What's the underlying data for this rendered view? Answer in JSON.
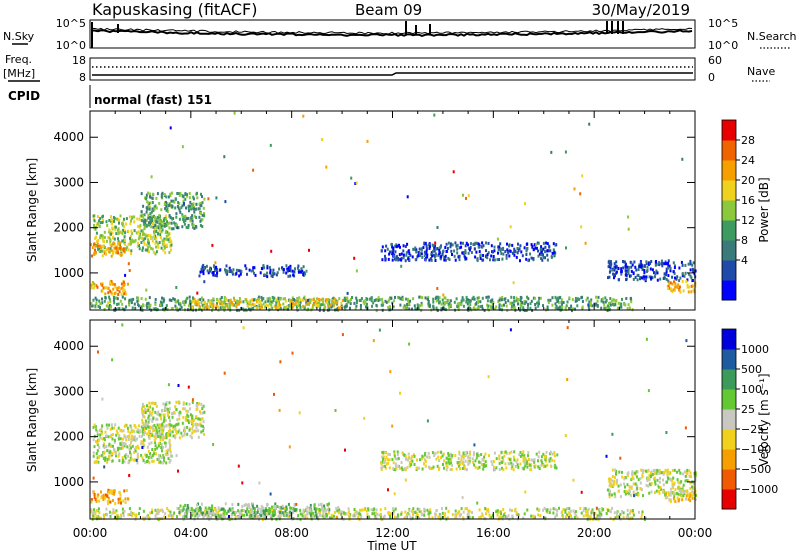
{
  "header": {
    "station": "Kapuskasing (fitACF)",
    "beam": "Beam 09",
    "date": "30/May/2019"
  },
  "noise_panel": {
    "left_label": "N.Sky",
    "right_label": "N.Search",
    "left_ticks": [
      "10^5",
      "10^0"
    ],
    "right_ticks": [
      "10^5",
      "10^0"
    ]
  },
  "freq_panel": {
    "label_top": "Freq.",
    "label_unit": "[MHz]",
    "left_ticks": [
      "18",
      "8"
    ],
    "right_label": "Nave",
    "right_ticks": [
      "60",
      "0"
    ]
  },
  "cpid": {
    "label": "CPID",
    "value": "normal (fast) 151"
  },
  "chart_data": [
    {
      "type": "heatmap",
      "panel": "power",
      "ylabel": "Slant Range [km]",
      "yticks": [
        "4000",
        "3000",
        "2000",
        "1000"
      ],
      "ylim": [
        180,
        4580
      ],
      "xlim": [
        0,
        24
      ],
      "colorbar_label": "Power [dB]",
      "colorbar_ticks": [
        "28",
        "24",
        "20",
        "16",
        "12",
        "8",
        "4"
      ],
      "colors": [
        "#0000ff",
        "#1f4aa8",
        "#3a7a7a",
        "#3d9b5f",
        "#8cc83c",
        "#f0d21e",
        "#f5a000",
        "#f06400",
        "#e60000"
      ],
      "regions": [
        {
          "t0": 0.1,
          "t1": 3.2,
          "r0": 1450,
          "r1": 2300,
          "lvl": 4
        },
        {
          "t0": 2.0,
          "t1": 4.5,
          "r0": 2000,
          "r1": 2800,
          "lvl": 3
        },
        {
          "t0": 0.0,
          "t1": 1.5,
          "r0": 550,
          "r1": 850,
          "lvl": 6
        },
        {
          "t0": 0.0,
          "t1": 1.5,
          "r0": 1400,
          "r1": 1700,
          "lvl": 6
        },
        {
          "t0": 0.0,
          "t1": 21.5,
          "r0": 200,
          "r1": 500,
          "lvl": 3
        },
        {
          "t0": 4.0,
          "t1": 10.0,
          "r0": 250,
          "r1": 450,
          "lvl": 5
        },
        {
          "t0": 4.3,
          "t1": 8.5,
          "r0": 950,
          "r1": 1200,
          "lvl": 1
        },
        {
          "t0": 11.5,
          "t1": 18.5,
          "r0": 1300,
          "r1": 1700,
          "lvl": 1
        },
        {
          "t0": 20.5,
          "t1": 24.0,
          "r0": 850,
          "r1": 1300,
          "lvl": 1
        },
        {
          "t0": 22.8,
          "t1": 24.0,
          "r0": 600,
          "r1": 850,
          "lvl": 6
        }
      ]
    },
    {
      "type": "heatmap",
      "panel": "velocity",
      "ylabel": "Slant Range [km]",
      "yticks": [
        "4000",
        "3000",
        "2000",
        "1000"
      ],
      "ylim": [
        180,
        4580
      ],
      "xlim": [
        0,
        24
      ],
      "xticks": [
        "00:00",
        "04:00",
        "08:00",
        "12:00",
        "16:00",
        "20:00",
        "00:00"
      ],
      "xlabel": "Time UT",
      "colorbar_label": "Velocity [m s⁻¹]",
      "colorbar_ticks": [
        "1000",
        "500",
        "100",
        "25",
        "−25",
        "−100",
        "−500",
        "−1000"
      ],
      "colors": [
        "#e60000",
        "#f05a00",
        "#f5a000",
        "#f0d21e",
        "#c8c8c0",
        "#64c832",
        "#3c9b5a",
        "#1e5aa0",
        "#0000dc"
      ],
      "regions": [
        {
          "t0": 0.1,
          "t1": 3.2,
          "r0": 1450,
          "r1": 2300,
          "lvl": 4
        },
        {
          "t0": 2.0,
          "t1": 4.5,
          "r0": 2000,
          "r1": 2800,
          "lvl": 4
        },
        {
          "t0": 0.0,
          "t1": 1.5,
          "r0": 550,
          "r1": 850,
          "lvl": 2
        },
        {
          "t0": 0.0,
          "t1": 22.0,
          "r0": 200,
          "r1": 450,
          "lvl": 4
        },
        {
          "t0": 3.5,
          "t1": 9.5,
          "r0": 250,
          "r1": 550,
          "lvl": 5
        },
        {
          "t0": 11.5,
          "t1": 18.5,
          "r0": 1300,
          "r1": 1700,
          "lvl": 4
        },
        {
          "t0": 20.5,
          "t1": 24.0,
          "r0": 700,
          "r1": 1300,
          "lvl": 4
        },
        {
          "t0": 22.8,
          "t1": 24.0,
          "r0": 600,
          "r1": 850,
          "lvl": 3
        }
      ]
    }
  ]
}
